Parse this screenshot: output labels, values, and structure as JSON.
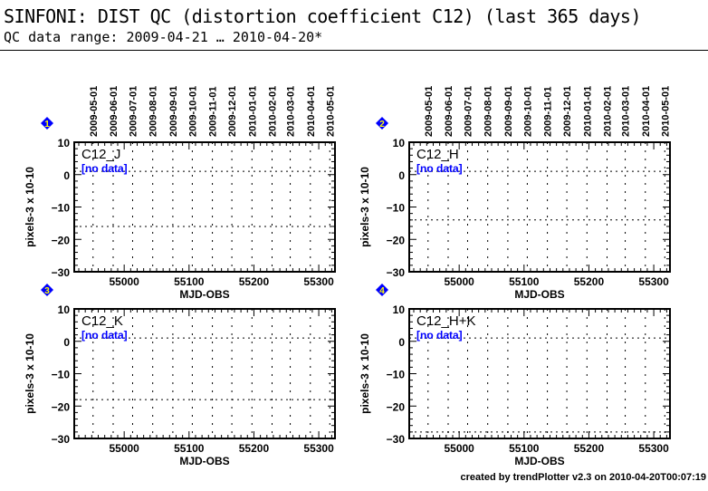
{
  "header": {
    "title": "SINFONI: DIST QC (distortion coefficient C12) (last 365 days)",
    "subtitle": "QC data range: 2009-04-21 … 2010-04-20*"
  },
  "footer": "created by trendPlotter v2.3 on 2010-04-20T00:07:19",
  "colors": {
    "no_data": "#0000ff",
    "badge": "#0000ff",
    "badge_text": "#ffff00",
    "axes": "#000000"
  },
  "chart_data": [
    {
      "type": "scatter",
      "panel": "1",
      "label": "C12_J",
      "note": "[no data]",
      "xlabel": "MJD-OBS",
      "ylabel": "pixels-3 x 10-10",
      "xlim": [
        54923,
        55325
      ],
      "ylim": [
        -30,
        10
      ],
      "xticks": [
        55000,
        55100,
        55200,
        55300
      ],
      "yticks": [
        10,
        0,
        -10,
        -20,
        -30
      ],
      "reference_lines": [
        1,
        -16
      ],
      "points": [],
      "grid": true
    },
    {
      "type": "scatter",
      "panel": "2",
      "label": "C12_H",
      "note": "[no data]",
      "xlabel": "MJD-OBS",
      "ylabel": "pixels-3 x 10-10",
      "xlim": [
        54923,
        55325
      ],
      "ylim": [
        -30,
        10
      ],
      "xticks": [
        55000,
        55100,
        55200,
        55300
      ],
      "yticks": [
        10,
        0,
        -10,
        -20,
        -30
      ],
      "reference_lines": [
        1,
        -14
      ],
      "points": [],
      "grid": true
    },
    {
      "type": "scatter",
      "panel": "3",
      "label": "C12_K",
      "note": "[no data]",
      "xlabel": "MJD-OBS",
      "ylabel": "pixels-3 x 10-10",
      "xlim": [
        54923,
        55325
      ],
      "ylim": [
        -30,
        10
      ],
      "xticks": [
        55000,
        55100,
        55200,
        55300
      ],
      "yticks": [
        10,
        0,
        -10,
        -20,
        -30
      ],
      "reference_lines": [
        1,
        -18
      ],
      "points": [],
      "grid": true
    },
    {
      "type": "scatter",
      "panel": "4",
      "label": "C12_H+K",
      "note": "[no data]",
      "xlabel": "MJD-OBS",
      "ylabel": "pixels-3 x 10-10",
      "xlim": [
        54923,
        55325
      ],
      "ylim": [
        -30,
        10
      ],
      "xticks": [
        55000,
        55100,
        55200,
        55300
      ],
      "yticks": [
        10,
        0,
        -10,
        -20,
        -30
      ],
      "reference_lines": [
        1,
        -28
      ],
      "points": [],
      "grid": true
    }
  ],
  "date_axis": {
    "labels": [
      "2009-05-01",
      "2009-06-01",
      "2009-07-01",
      "2009-08-01",
      "2009-09-01",
      "2009-10-01",
      "2009-11-01",
      "2009-12-01",
      "2010-01-01",
      "2010-02-01",
      "2010-03-01",
      "2010-04-01",
      "2010-05-01"
    ],
    "mjd": [
      54952,
      54983,
      55013,
      55044,
      55075,
      55105,
      55136,
      55166,
      55197,
      55228,
      55256,
      55287,
      55317
    ]
  }
}
